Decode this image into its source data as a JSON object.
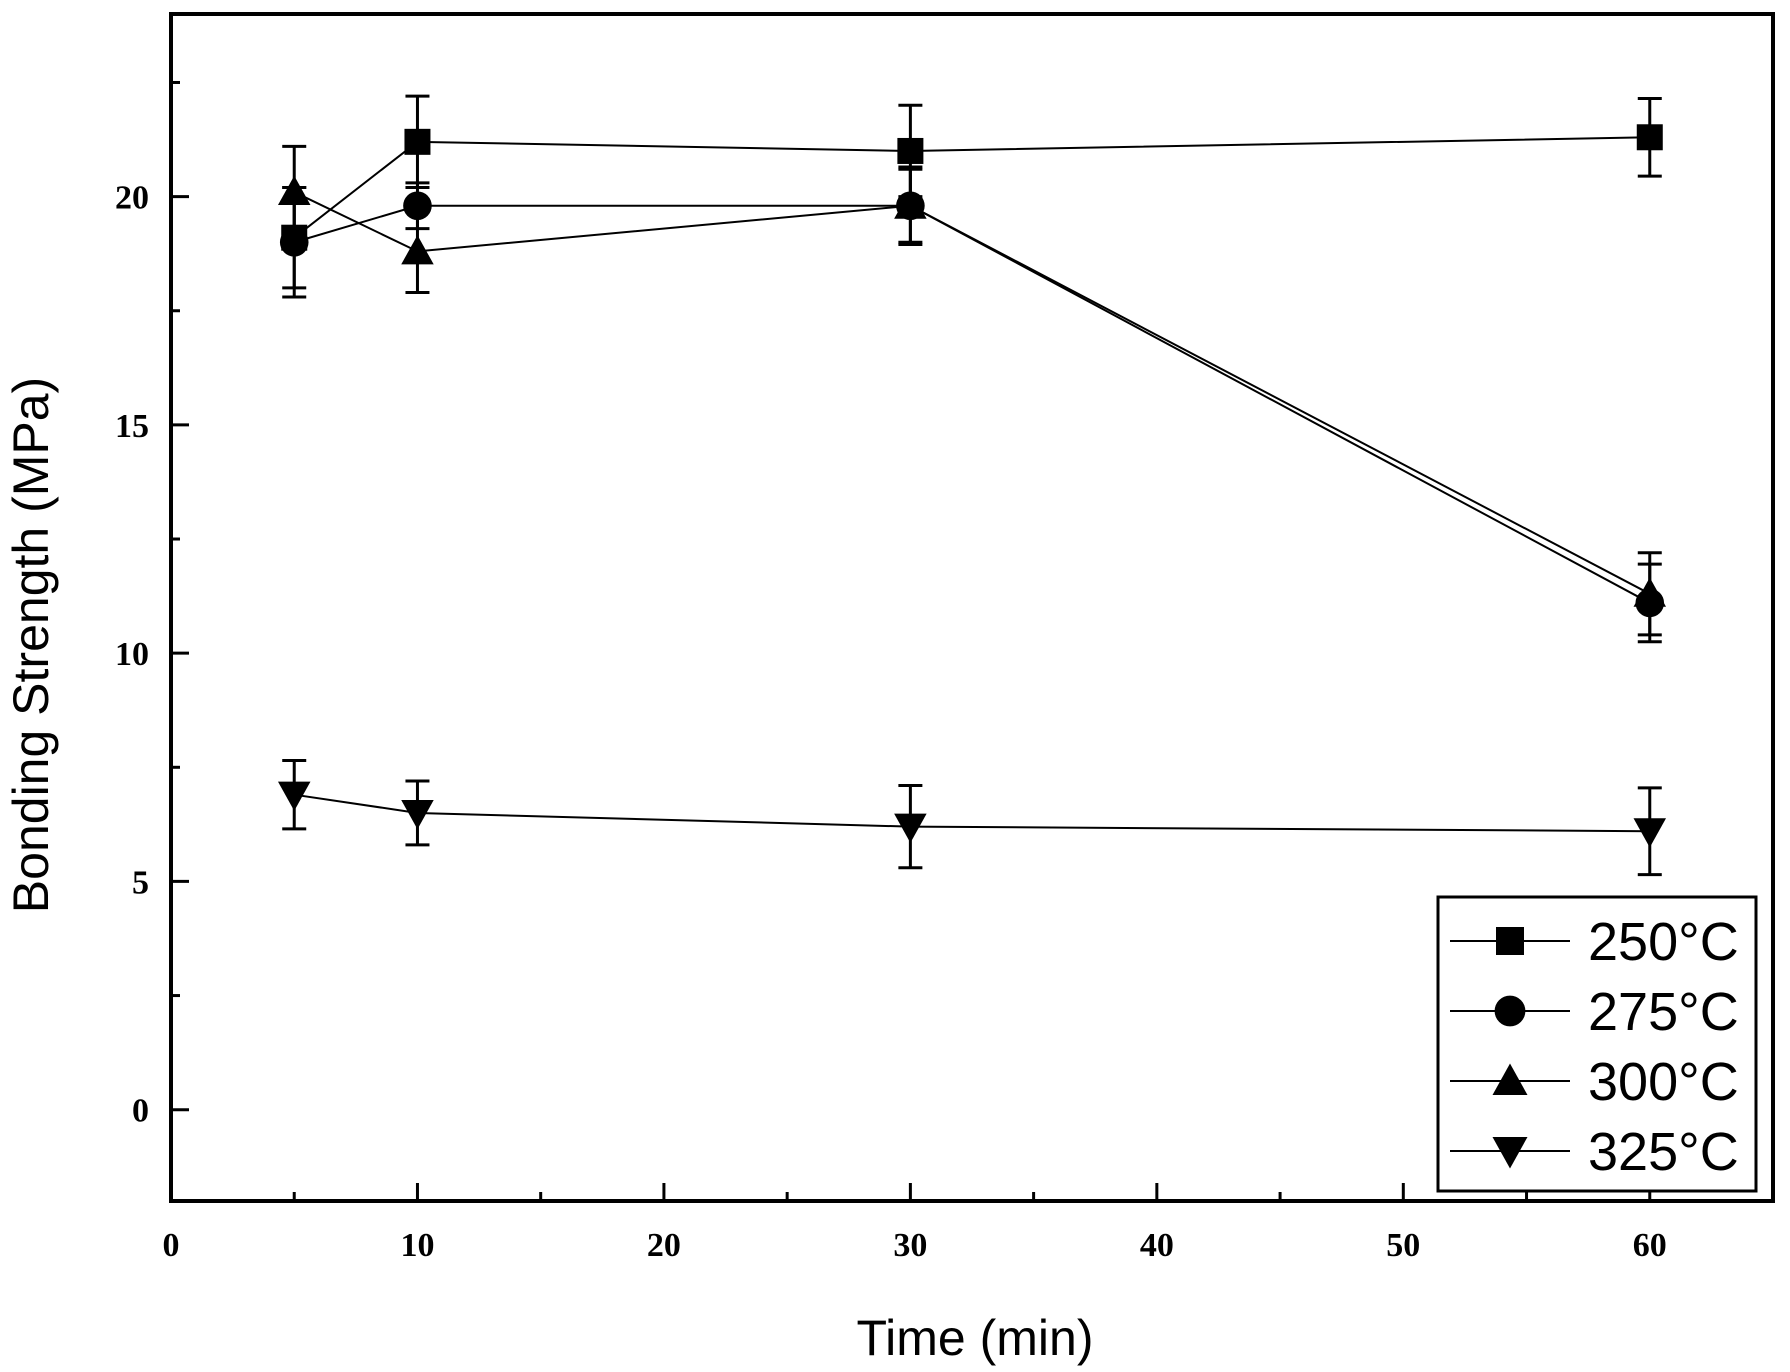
{
  "chart_data": {
    "type": "line",
    "title": "",
    "xlabel": "Time (min)",
    "ylabel": "Bonding Strength (MPa)",
    "xlim": [
      0,
      65
    ],
    "ylim": [
      -2,
      24
    ],
    "x_ticks": [
      "0",
      "10",
      "20",
      "30",
      "40",
      "50",
      "60"
    ],
    "x_tick_values": [
      0,
      10,
      20,
      30,
      40,
      50,
      60
    ],
    "y_ticks": [
      "0",
      "5",
      "10",
      "15",
      "20"
    ],
    "y_tick_values": [
      0,
      5,
      10,
      15,
      20
    ],
    "grid": false,
    "legend_position": "bottom-right",
    "x": [
      5,
      10,
      30,
      60
    ],
    "series": [
      {
        "name": "250°C",
        "marker": "square",
        "values": [
          19.1,
          21.2,
          21.0,
          21.3
        ],
        "errors": [
          1.1,
          1.0,
          1.0,
          0.85
        ]
      },
      {
        "name": "275°C",
        "marker": "circle",
        "values": [
          19.0,
          19.8,
          19.8,
          11.1
        ],
        "errors": [
          1.2,
          0.5,
          0.85,
          0.85
        ]
      },
      {
        "name": "300°C",
        "marker": "triangle-up",
        "values": [
          20.1,
          18.8,
          19.8,
          11.3
        ],
        "errors": [
          1.0,
          0.9,
          0.8,
          0.9
        ]
      },
      {
        "name": "325°C",
        "marker": "triangle-down",
        "values": [
          6.9,
          6.5,
          6.2,
          6.1
        ],
        "errors": [
          0.75,
          0.7,
          0.9,
          0.95
        ]
      }
    ]
  }
}
